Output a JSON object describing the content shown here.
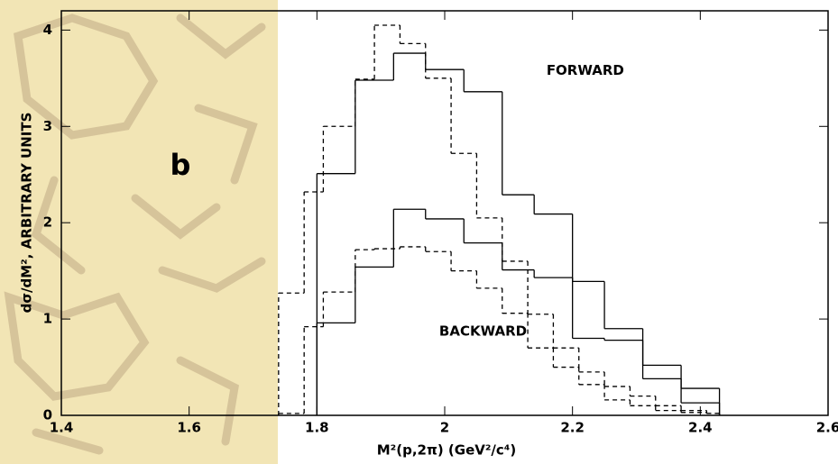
{
  "chart_data": {
    "type": "histogram",
    "panel_label": "b",
    "xlabel": "M²(p,2π) (GeV²/c⁴)",
    "ylabel": "dσ/dM², ARBITRARY UNITS",
    "xlim": [
      1.4,
      2.6
    ],
    "ylim": [
      0,
      4.2
    ],
    "xticks": [
      1.4,
      1.6,
      1.8,
      2,
      2.2,
      2.4,
      2.6
    ],
    "yticks": [
      0,
      1,
      2,
      3,
      4
    ],
    "annotations": [
      {
        "text": "FORWARD",
        "x": 2.22,
        "y": 3.58
      },
      {
        "text": "BACKWARD",
        "x": 2.06,
        "y": 0.87
      }
    ],
    "series": [
      {
        "color": "#000000",
        "dashed": false,
        "bins": [
          1.8,
          1.86,
          1.92,
          1.97,
          2.03,
          2.09,
          2.14,
          2.2,
          2.25,
          2.31,
          2.37,
          2.43
        ],
        "values": [
          2.51,
          3.48,
          3.76,
          3.59,
          3.36,
          2.29,
          2.09,
          1.39,
          0.9,
          0.52,
          0.28
        ]
      },
      {
        "color": "#000000",
        "dashed": false,
        "bins": [
          1.8,
          1.86,
          1.92,
          1.97,
          2.03,
          2.09,
          2.14,
          2.2,
          2.25,
          2.31,
          2.37,
          2.43
        ],
        "values": [
          0.96,
          1.54,
          2.14,
          2.04,
          1.79,
          1.51,
          1.43,
          0.8,
          0.78,
          0.38,
          0.13
        ]
      },
      {
        "color": "#000000",
        "dashed": true,
        "bins": [
          1.74,
          1.78,
          1.81,
          1.86,
          1.89,
          1.93,
          1.97,
          2.01,
          2.05,
          2.09,
          2.13,
          2.17,
          2.21,
          2.25,
          2.29,
          2.33,
          2.37,
          2.41,
          2.43
        ],
        "values": [
          1.27,
          2.32,
          3.0,
          3.49,
          4.05,
          3.86,
          3.5,
          2.72,
          2.05,
          1.6,
          1.05,
          0.7,
          0.45,
          0.3,
          0.2,
          0.1,
          0.05,
          0.02
        ]
      },
      {
        "color": "#000000",
        "dashed": true,
        "bins": [
          1.74,
          1.78,
          1.81,
          1.86,
          1.89,
          1.93,
          1.97,
          2.01,
          2.05,
          2.09,
          2.13,
          2.17,
          2.21,
          2.25,
          2.29,
          2.33,
          2.37,
          2.41,
          2.43
        ],
        "values": [
          0.02,
          0.92,
          1.28,
          1.72,
          1.73,
          1.75,
          1.7,
          1.5,
          1.32,
          1.06,
          0.7,
          0.5,
          0.32,
          0.16,
          0.1,
          0.05,
          0.03,
          0.02
        ]
      }
    ]
  }
}
